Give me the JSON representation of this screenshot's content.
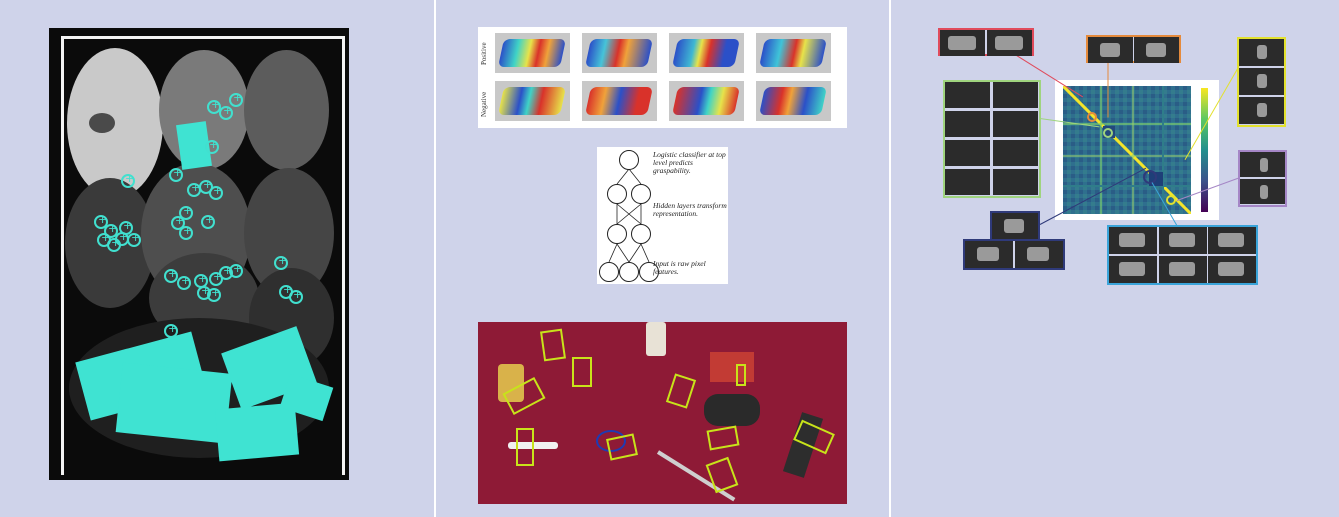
{
  "panel2": {
    "surfaces": {
      "row_labels": [
        "Positive",
        "Negative"
      ]
    },
    "network": {
      "annotations": [
        "Logistic classifier at top level predicts graspability.",
        "Hidden layers transform representation.",
        "Input is raw pixel features."
      ]
    }
  },
  "colors": {
    "background": "#cfd3ea",
    "grasp_marker": "#41e0cf",
    "grasp_box": "#c8e31a",
    "table_cloth": "#8e1a36",
    "cluster_red": "#e04b5c",
    "cluster_orange": "#e58a3c",
    "cluster_yellow": "#e3e12e",
    "cluster_green": "#9fd47e",
    "cluster_purple": "#a586c6",
    "cluster_navy": "#2f3a7a",
    "cluster_blue": "#3aa4d9"
  }
}
